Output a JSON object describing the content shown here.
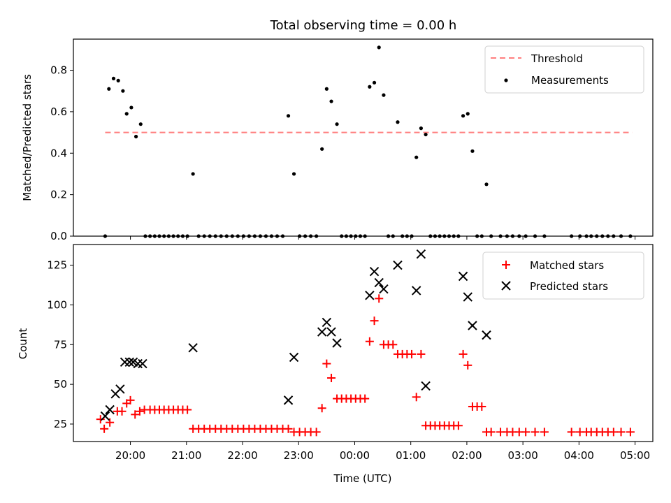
{
  "chart_data": [
    {
      "type": "scatter",
      "title": "Total observing time = 0.00 h",
      "xlabel": "",
      "ylabel": "Matched/Predicted stars",
      "ylim": [
        0,
        0.95
      ],
      "yticks": [
        0.0,
        0.2,
        0.4,
        0.6,
        0.8
      ],
      "ytick_labels": [
        "0.0",
        "0.2",
        "0.4",
        "0.6",
        "0.8"
      ],
      "threshold": {
        "name": "Threshold",
        "value": 0.5,
        "x_start": "19:33",
        "x_end": "04:57",
        "color": "#ff7f7f",
        "style": "dashed"
      },
      "legend": {
        "placement": "top-right",
        "entries": [
          "Threshold",
          "Measurements"
        ]
      },
      "series": [
        {
          "name": "Measurements",
          "color": "#000000",
          "marker": "dot",
          "points": [
            [
              "19:33",
              0.0
            ],
            [
              "19:37",
              0.71
            ],
            [
              "19:42",
              0.76
            ],
            [
              "19:47",
              0.75
            ],
            [
              "19:52",
              0.7
            ],
            [
              "19:56",
              0.59
            ],
            [
              "20:01",
              0.62
            ],
            [
              "20:06",
              0.48
            ],
            [
              "20:11",
              0.54
            ],
            [
              "20:16",
              0.0
            ],
            [
              "20:21",
              0.0
            ],
            [
              "20:26",
              0.0
            ],
            [
              "20:31",
              0.0
            ],
            [
              "20:36",
              0.0
            ],
            [
              "20:41",
              0.0
            ],
            [
              "20:46",
              0.0
            ],
            [
              "20:51",
              0.0
            ],
            [
              "20:56",
              0.0
            ],
            [
              "21:01",
              0.0
            ],
            [
              "21:07",
              0.3
            ],
            [
              "21:13",
              0.0
            ],
            [
              "21:19",
              0.0
            ],
            [
              "21:25",
              0.0
            ],
            [
              "21:31",
              0.0
            ],
            [
              "21:37",
              0.0
            ],
            [
              "21:43",
              0.0
            ],
            [
              "21:49",
              0.0
            ],
            [
              "21:55",
              0.0
            ],
            [
              "22:01",
              0.0
            ],
            [
              "22:07",
              0.0
            ],
            [
              "22:13",
              0.0
            ],
            [
              "22:19",
              0.0
            ],
            [
              "22:25",
              0.0
            ],
            [
              "22:31",
              0.0
            ],
            [
              "22:37",
              0.0
            ],
            [
              "22:43",
              0.0
            ],
            [
              "22:49",
              0.58
            ],
            [
              "22:55",
              0.3
            ],
            [
              "23:01",
              0.0
            ],
            [
              "23:07",
              0.0
            ],
            [
              "23:13",
              0.0
            ],
            [
              "23:19",
              0.0
            ],
            [
              "23:25",
              0.42
            ],
            [
              "23:30",
              0.71
            ],
            [
              "23:35",
              0.65
            ],
            [
              "23:41",
              0.54
            ],
            [
              "23:46",
              0.0
            ],
            [
              "23:51",
              0.0
            ],
            [
              "23:56",
              0.0
            ],
            [
              "00:01",
              0.0
            ],
            [
              "00:06",
              0.0
            ],
            [
              "00:11",
              0.0
            ],
            [
              "00:16",
              0.72
            ],
            [
              "00:21",
              0.74
            ],
            [
              "00:26",
              0.91
            ],
            [
              "00:31",
              0.68
            ],
            [
              "00:36",
              0.0
            ],
            [
              "00:41",
              0.0
            ],
            [
              "00:46",
              0.55
            ],
            [
              "00:51",
              0.0
            ],
            [
              "00:56",
              0.0
            ],
            [
              "01:01",
              0.0
            ],
            [
              "01:06",
              0.38
            ],
            [
              "01:11",
              0.52
            ],
            [
              "01:16",
              0.49
            ],
            [
              "01:21",
              0.0
            ],
            [
              "01:26",
              0.0
            ],
            [
              "01:31",
              0.0
            ],
            [
              "01:36",
              0.0
            ],
            [
              "01:41",
              0.0
            ],
            [
              "01:46",
              0.0
            ],
            [
              "01:51",
              0.0
            ],
            [
              "01:56",
              0.58
            ],
            [
              "02:01",
              0.59
            ],
            [
              "02:06",
              0.41
            ],
            [
              "02:11",
              0.0
            ],
            [
              "02:16",
              0.0
            ],
            [
              "02:21",
              0.25
            ],
            [
              "02:26",
              0.0
            ],
            [
              "02:36",
              0.0
            ],
            [
              "02:43",
              0.0
            ],
            [
              "02:49",
              0.0
            ],
            [
              "02:56",
              0.0
            ],
            [
              "03:03",
              0.0
            ],
            [
              "03:13",
              0.0
            ],
            [
              "03:23",
              0.0
            ],
            [
              "03:52",
              0.0
            ],
            [
              "04:01",
              0.0
            ],
            [
              "04:08",
              0.0
            ],
            [
              "04:13",
              0.0
            ],
            [
              "04:19",
              0.0
            ],
            [
              "04:25",
              0.0
            ],
            [
              "04:31",
              0.0
            ],
            [
              "04:37",
              0.0
            ],
            [
              "04:45",
              0.0
            ],
            [
              "04:55",
              0.0
            ]
          ]
        }
      ]
    },
    {
      "type": "scatter",
      "title": "",
      "xlabel": "Time (UTC)",
      "ylabel": "Count",
      "ylim": [
        14,
        138
      ],
      "yticks": [
        25,
        50,
        75,
        100,
        125
      ],
      "ytick_labels": [
        "25",
        "50",
        "75",
        "100",
        "125"
      ],
      "xticks": [
        "20:00",
        "21:00",
        "22:00",
        "23:00",
        "00:00",
        "01:00",
        "02:00",
        "03:00",
        "04:00",
        "05:00"
      ],
      "legend": {
        "placement": "top-right",
        "entries": [
          "Matched stars",
          "Predicted stars"
        ]
      },
      "series": [
        {
          "name": "Matched stars",
          "color": "#ff0000",
          "marker": "plus",
          "points": [
            [
              "19:28",
              28
            ],
            [
              "19:32",
              22
            ],
            [
              "19:38",
              26
            ],
            [
              "19:46",
              33
            ],
            [
              "19:51",
              33
            ],
            [
              "19:56",
              38
            ],
            [
              "20:00",
              40
            ],
            [
              "20:05",
              31
            ],
            [
              "20:10",
              33
            ],
            [
              "20:15",
              34
            ],
            [
              "20:21",
              34
            ],
            [
              "20:26",
              34
            ],
            [
              "20:31",
              34
            ],
            [
              "20:36",
              34
            ],
            [
              "20:41",
              34
            ],
            [
              "20:46",
              34
            ],
            [
              "20:51",
              34
            ],
            [
              "20:56",
              34
            ],
            [
              "21:01",
              34
            ],
            [
              "21:07",
              22
            ],
            [
              "21:13",
              22
            ],
            [
              "21:19",
              22
            ],
            [
              "21:25",
              22
            ],
            [
              "21:31",
              22
            ],
            [
              "21:37",
              22
            ],
            [
              "21:43",
              22
            ],
            [
              "21:49",
              22
            ],
            [
              "21:55",
              22
            ],
            [
              "22:01",
              22
            ],
            [
              "22:07",
              22
            ],
            [
              "22:13",
              22
            ],
            [
              "22:19",
              22
            ],
            [
              "22:25",
              22
            ],
            [
              "22:31",
              22
            ],
            [
              "22:37",
              22
            ],
            [
              "22:43",
              22
            ],
            [
              "22:49",
              22
            ],
            [
              "22:55",
              20
            ],
            [
              "23:01",
              20
            ],
            [
              "23:07",
              20
            ],
            [
              "23:13",
              20
            ],
            [
              "23:19",
              20
            ],
            [
              "23:25",
              35
            ],
            [
              "23:30",
              63
            ],
            [
              "23:35",
              54
            ],
            [
              "23:41",
              41
            ],
            [
              "23:46",
              41
            ],
            [
              "23:51",
              41
            ],
            [
              "23:56",
              41
            ],
            [
              "00:01",
              41
            ],
            [
              "00:06",
              41
            ],
            [
              "00:11",
              41
            ],
            [
              "00:16",
              77
            ],
            [
              "00:21",
              90
            ],
            [
              "00:26",
              104
            ],
            [
              "00:31",
              75
            ],
            [
              "00:36",
              75
            ],
            [
              "00:41",
              75
            ],
            [
              "00:46",
              69
            ],
            [
              "00:51",
              69
            ],
            [
              "00:56",
              69
            ],
            [
              "01:01",
              69
            ],
            [
              "01:06",
              42
            ],
            [
              "01:11",
              69
            ],
            [
              "01:16",
              24
            ],
            [
              "01:21",
              24
            ],
            [
              "01:26",
              24
            ],
            [
              "01:31",
              24
            ],
            [
              "01:36",
              24
            ],
            [
              "01:41",
              24
            ],
            [
              "01:46",
              24
            ],
            [
              "01:51",
              24
            ],
            [
              "01:56",
              69
            ],
            [
              "02:01",
              62
            ],
            [
              "02:06",
              36
            ],
            [
              "02:11",
              36
            ],
            [
              "02:16",
              36
            ],
            [
              "02:21",
              20
            ],
            [
              "02:26",
              20
            ],
            [
              "02:36",
              20
            ],
            [
              "02:43",
              20
            ],
            [
              "02:49",
              20
            ],
            [
              "02:56",
              20
            ],
            [
              "03:03",
              20
            ],
            [
              "03:13",
              20
            ],
            [
              "03:23",
              20
            ],
            [
              "03:52",
              20
            ],
            [
              "04:01",
              20
            ],
            [
              "04:08",
              20
            ],
            [
              "04:13",
              20
            ],
            [
              "04:19",
              20
            ],
            [
              "04:25",
              20
            ],
            [
              "04:31",
              20
            ],
            [
              "04:37",
              20
            ],
            [
              "04:45",
              20
            ],
            [
              "04:55",
              20
            ]
          ]
        },
        {
          "name": "Predicted stars",
          "color": "#000000",
          "marker": "x",
          "points": [
            [
              "19:33",
              30
            ],
            [
              "19:38",
              34
            ],
            [
              "19:44",
              44
            ],
            [
              "19:49",
              47
            ],
            [
              "19:54",
              64
            ],
            [
              "19:59",
              64
            ],
            [
              "20:03",
              64
            ],
            [
              "20:08",
              63
            ],
            [
              "20:13",
              63
            ],
            [
              "21:07",
              73
            ],
            [
              "22:49",
              40
            ],
            [
              "22:55",
              67
            ],
            [
              "23:25",
              83
            ],
            [
              "23:30",
              89
            ],
            [
              "23:35",
              83
            ],
            [
              "23:41",
              76
            ],
            [
              "00:16",
              106
            ],
            [
              "00:21",
              121
            ],
            [
              "00:26",
              114
            ],
            [
              "00:31",
              110
            ],
            [
              "00:46",
              125
            ],
            [
              "01:06",
              109
            ],
            [
              "01:11",
              132
            ],
            [
              "01:16",
              49
            ],
            [
              "01:56",
              118
            ],
            [
              "02:01",
              105
            ],
            [
              "02:06",
              87
            ],
            [
              "02:21",
              81
            ]
          ]
        }
      ]
    }
  ]
}
